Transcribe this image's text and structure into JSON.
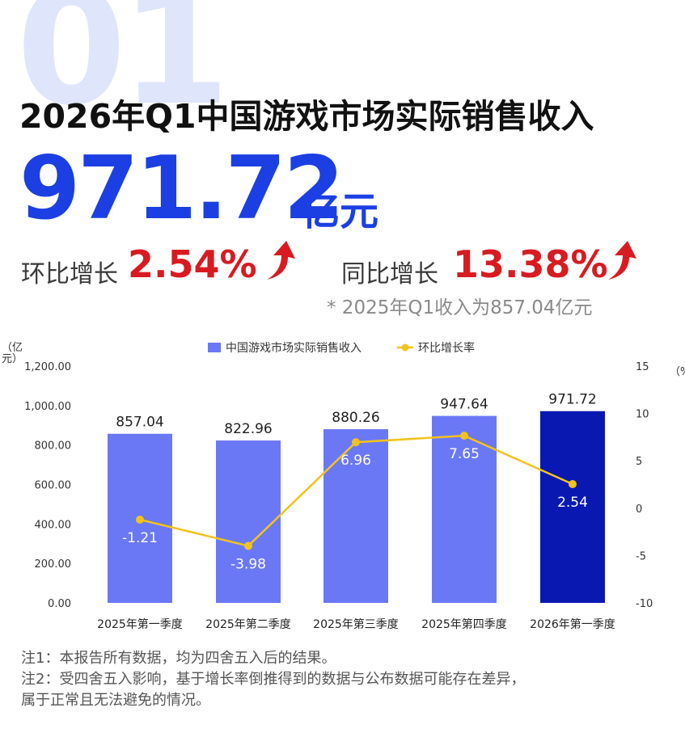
{
  "header": {
    "bg_number": "01",
    "title": "2026年Q1中国游戏市场实际销售收入",
    "value": "971.72",
    "unit": "亿元",
    "qoq_label": "环比增长",
    "qoq_value": "2.54%",
    "yoy_label": "同比增长",
    "yoy_value": "13.38%",
    "note_q1": "* 2025年Q1收入为857.04亿元"
  },
  "colors": {
    "bar": "#6b78f5",
    "bar_highlight": "#0a18b2",
    "line": "#f2c31b",
    "accent_blue": "#1c3fe3",
    "accent_red": "#d81b21"
  },
  "chart_data": {
    "type": "bar",
    "categories": [
      "2025年第一季度",
      "2025年第二季度",
      "2025年第三季度",
      "2025年第四季度",
      "2026年第一季度"
    ],
    "series": [
      {
        "name": "中国游戏市场实际销售收入",
        "type": "bar",
        "values": [
          857.04,
          822.96,
          880.26,
          947.64,
          971.72
        ],
        "labels": [
          "857.04",
          "822.96",
          "880.26",
          "947.64",
          "971.72"
        ]
      },
      {
        "name": "环比增长率",
        "type": "line",
        "axis": "right",
        "values": [
          -1.21,
          -3.98,
          6.96,
          7.65,
          2.54
        ],
        "labels": [
          "-1.21",
          "-3.98",
          "6.96",
          "7.65",
          "2.54"
        ]
      }
    ],
    "left_axis": {
      "unit": "（亿元）",
      "ylim": [
        0,
        1200
      ],
      "ticks": [
        "0.00",
        "200.00",
        "400.00",
        "600.00",
        "800.00",
        "1,000.00",
        "1,200.00"
      ]
    },
    "right_axis": {
      "unit": "（%）",
      "ylim": [
        -10,
        15
      ],
      "ticks": [
        "-10",
        "-5",
        "0",
        "5",
        "10",
        "15"
      ]
    },
    "legend_position": "top-center",
    "highlight_index": 4,
    "grid": false
  },
  "notes": [
    "注1：本报告所有数据，均为四舍五入后的结果。",
    "注2：受四舍五入影响，基于增长率倒推得到的数据与公布数据可能存在差异，",
    "属于正常且无法避免的情况。"
  ]
}
